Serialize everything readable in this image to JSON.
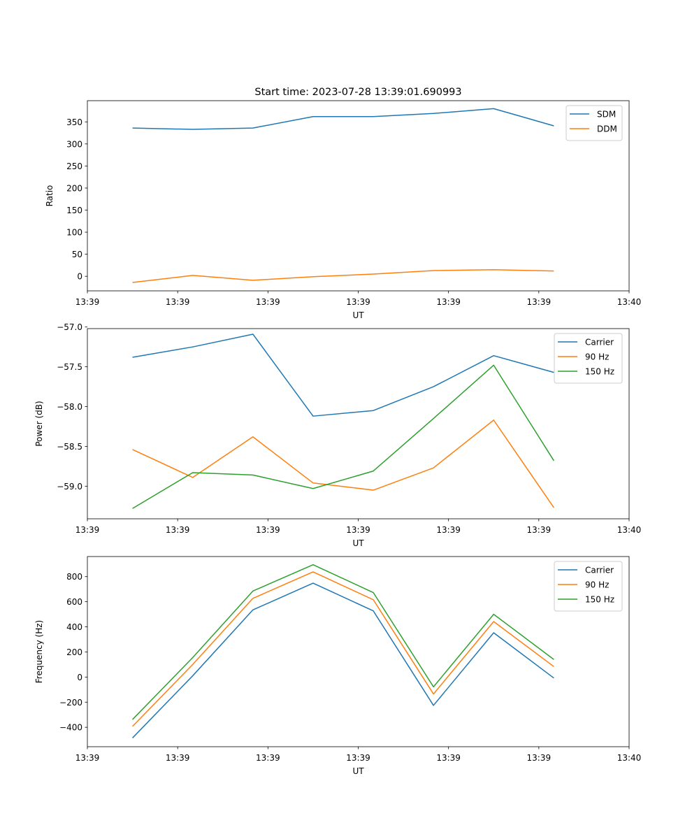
{
  "colors": {
    "c0": "#1f77b4",
    "c1": "#ff7f0e",
    "c2": "#2ca02c",
    "legend_border": "#cccccc"
  },
  "chart_data": [
    {
      "type": "line",
      "title": "Start time: 2023-07-28 13:39:01.690993",
      "xlabel": "UT",
      "ylabel": "Ratio",
      "xlim": [
        0,
        9
      ],
      "ylim": [
        -33,
        398
      ],
      "x_ticks": [
        0,
        1.5,
        3,
        4.5,
        6,
        7.5,
        9
      ],
      "x_tick_labels": [
        "13:39",
        "13:39",
        "13:39",
        "13:39",
        "13:39",
        "13:39",
        "13:40"
      ],
      "y_ticks": [
        0,
        50,
        100,
        150,
        200,
        250,
        300,
        350
      ],
      "y_tick_labels": [
        "0",
        "50",
        "100",
        "150",
        "200",
        "250",
        "300",
        "350"
      ],
      "x": [
        0.75,
        1.75,
        2.75,
        3.75,
        4.75,
        5.75,
        6.75,
        7.75
      ],
      "legend_position": "top-right",
      "series": [
        {
          "name": "SDM",
          "color_key": "c0",
          "values": [
            336,
            333,
            336,
            362,
            362,
            369,
            380,
            341
          ]
        },
        {
          "name": "DDM",
          "color_key": "c1",
          "values": [
            -14,
            2,
            -9,
            -1,
            5,
            13,
            15,
            12
          ]
        }
      ]
    },
    {
      "type": "line",
      "title": "",
      "xlabel": "UT",
      "ylabel": "Power (dB)",
      "xlim": [
        0,
        9
      ],
      "ylim": [
        -59.41,
        -57.02
      ],
      "x_ticks": [
        0,
        1.5,
        3,
        4.5,
        6,
        7.5,
        9
      ],
      "x_tick_labels": [
        "13:39",
        "13:39",
        "13:39",
        "13:39",
        "13:39",
        "13:39",
        "13:40"
      ],
      "y_ticks": [
        -57.0,
        -57.5,
        -58.0,
        -58.5,
        -59.0
      ],
      "y_tick_labels": [
        "−57.0",
        "−57.5",
        "−58.0",
        "−58.5",
        "−59.0"
      ],
      "x": [
        0.75,
        1.75,
        2.75,
        3.75,
        4.75,
        5.75,
        6.75,
        7.75
      ],
      "legend_position": "top-right",
      "series": [
        {
          "name": "Carrier",
          "color_key": "c0",
          "values": [
            -57.38,
            -57.25,
            -57.09,
            -58.12,
            -58.05,
            -57.75,
            -57.36,
            -57.57
          ]
        },
        {
          "name": "90 Hz",
          "color_key": "c1",
          "values": [
            -58.54,
            -58.89,
            -58.38,
            -58.96,
            -59.05,
            -58.77,
            -58.17,
            -59.27
          ]
        },
        {
          "name": "150 Hz",
          "color_key": "c2",
          "values": [
            -59.28,
            -58.83,
            -58.86,
            -59.03,
            -58.81,
            -58.15,
            -57.48,
            -58.68
          ]
        }
      ]
    },
    {
      "type": "line",
      "title": "",
      "xlabel": "UT",
      "ylabel": "Frequency (Hz)",
      "xlim": [
        0,
        9
      ],
      "ylim": [
        -555,
        960
      ],
      "x_ticks": [
        0,
        1.5,
        3,
        4.5,
        6,
        7.5,
        9
      ],
      "x_tick_labels": [
        "13:39",
        "13:39",
        "13:39",
        "13:39",
        "13:39",
        "13:39",
        "13:40"
      ],
      "y_ticks": [
        -400,
        -200,
        0,
        200,
        400,
        600,
        800
      ],
      "y_tick_labels": [
        "−400",
        "−200",
        "0",
        "200",
        "400",
        "600",
        "800"
      ],
      "x": [
        0.75,
        1.75,
        2.75,
        3.75,
        4.75,
        5.75,
        6.75,
        7.75
      ],
      "legend_position": "top-right",
      "series": [
        {
          "name": "Carrier",
          "color_key": "c0",
          "values": [
            -485,
            10,
            535,
            748,
            527,
            -226,
            353,
            -8
          ]
        },
        {
          "name": "90 Hz",
          "color_key": "c1",
          "values": [
            -393,
            100,
            627,
            838,
            616,
            -135,
            442,
            83
          ]
        },
        {
          "name": "150 Hz",
          "color_key": "c2",
          "values": [
            -338,
            155,
            685,
            895,
            673,
            -78,
            500,
            140
          ]
        }
      ]
    }
  ]
}
